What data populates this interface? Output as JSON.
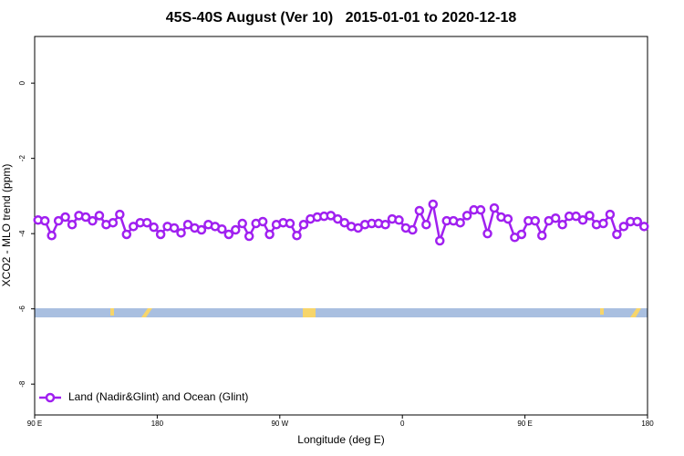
{
  "chart_data": {
    "type": "line",
    "title": "45S-40S August (Ver 10)   2015-01-01 to 2020-12-18",
    "x_label": "Longitude (deg E)",
    "y_label": "XCO2 - MLO trend (ppm)",
    "x": [
      -267.5,
      -262.5,
      -257.5,
      -252.5,
      -247.5,
      -242.5,
      -237.5,
      -232.5,
      -227.5,
      -222.5,
      -217.5,
      -212.5,
      -207.5,
      -202.5,
      -197.5,
      -192.5,
      -187.5,
      -182.5,
      -177.5,
      -172.5,
      -167.5,
      -162.5,
      -157.5,
      -152.5,
      -147.5,
      -142.5,
      -137.5,
      -132.5,
      -127.5,
      -122.5,
      -117.5,
      -112.5,
      -107.5,
      -102.5,
      -97.5,
      -92.5,
      -87.5,
      -82.5,
      -77.5,
      -72.5,
      -67.5,
      -62.5,
      -57.5,
      -52.5,
      -47.5,
      -42.5,
      -37.5,
      -32.5,
      -27.5,
      -22.5,
      -17.5,
      -12.5,
      -7.5,
      -2.5,
      2.5,
      7.5,
      12.5,
      17.5,
      22.5,
      27.5,
      32.5,
      37.5,
      42.5,
      47.5,
      52.5,
      57.5,
      62.5,
      67.5,
      72.5,
      77.5,
      82.5,
      87.5,
      92.5,
      97.5,
      102.5,
      107.5,
      112.5,
      117.5,
      122.5,
      127.5,
      132.5,
      137.5,
      142.5,
      147.5,
      152.5,
      157.5,
      162.5,
      167.5,
      172.5,
      177.5
    ],
    "series": [
      {
        "name": "Land (Nadir&Glint) and Ocean (Glint)",
        "color": "#a020f0",
        "values": [
          -3.64,
          -3.66,
          -4.05,
          -3.66,
          -3.56,
          -3.76,
          -3.52,
          -3.56,
          -3.66,
          -3.52,
          -3.76,
          -3.71,
          -3.49,
          -4.02,
          -3.81,
          -3.71,
          -3.71,
          -3.83,
          -4.02,
          -3.81,
          -3.85,
          -3.98,
          -3.76,
          -3.85,
          -3.9,
          -3.76,
          -3.81,
          -3.88,
          -4.02,
          -3.9,
          -3.73,
          -4.07,
          -3.73,
          -3.68,
          -4.02,
          -3.76,
          -3.71,
          -3.73,
          -4.05,
          -3.76,
          -3.61,
          -3.56,
          -3.54,
          -3.52,
          -3.61,
          -3.71,
          -3.81,
          -3.85,
          -3.76,
          -3.73,
          -3.73,
          -3.76,
          -3.61,
          -3.64,
          -3.85,
          -3.9,
          -3.39,
          -3.76,
          -3.22,
          -4.19,
          -3.66,
          -3.66,
          -3.71,
          -3.52,
          -3.37,
          -3.37,
          -4.0,
          -3.32,
          -3.56,
          -3.61,
          -4.1,
          -4.02,
          -3.66,
          -3.66,
          -4.05,
          -3.66,
          -3.59,
          -3.76,
          -3.54,
          -3.54,
          -3.64,
          -3.52,
          -3.76,
          -3.73,
          -3.49,
          -4.02,
          -3.81,
          -3.68,
          -3.68,
          -3.81
        ]
      }
    ],
    "xlim": [
      -270,
      180
    ],
    "xticks": [
      {
        "value": -270,
        "label": "90 E"
      },
      {
        "value": -180,
        "label": "180"
      },
      {
        "value": -90,
        "label": "90 W"
      },
      0,
      {
        "value": 90,
        "label": "90 E"
      },
      180
    ],
    "ylim": [
      -8.82,
      1.24
    ],
    "yticks": [
      0,
      -2,
      -4,
      -6,
      -8
    ],
    "legend": "bottom-left"
  }
}
